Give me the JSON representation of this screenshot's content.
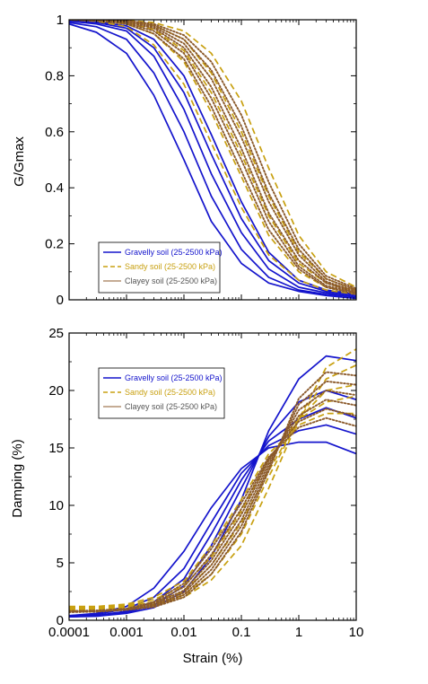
{
  "colors": {
    "gravelly": "#1414cc",
    "sandy": "#c8a010",
    "clayey": "#8b5a2b"
  },
  "chart_data": [
    {
      "type": "line",
      "xscale": "log",
      "xlim": [
        0.0001,
        10
      ],
      "ylim": [
        0,
        1
      ],
      "ylabel": "G/Gmax",
      "xlabel": "",
      "yticks": [
        "0",
        "0.2",
        "0.4",
        "0.6",
        "0.8",
        "1"
      ],
      "xticks": [],
      "legend": {
        "placement": "lower-left",
        "entries": [
          "Gravelly soil (25-2500 kPa)",
          "Sandy soil (25-2500 kPa)",
          "Clayey soil (25-2500 kPa)"
        ]
      },
      "series": [
        {
          "group": "gravelly",
          "x": [
            0.0001,
            0.0003,
            0.001,
            0.003,
            0.01,
            0.03,
            0.1,
            0.3,
            1,
            3,
            10
          ],
          "y": [
            0.985,
            0.955,
            0.88,
            0.73,
            0.5,
            0.28,
            0.13,
            0.06,
            0.03,
            0.015,
            0.005
          ]
        },
        {
          "group": "gravelly",
          "x": [
            0.0001,
            0.0003,
            0.001,
            0.003,
            0.01,
            0.03,
            0.1,
            0.3,
            1,
            3,
            10
          ],
          "y": [
            0.99,
            0.975,
            0.93,
            0.81,
            0.6,
            0.37,
            0.18,
            0.08,
            0.035,
            0.02,
            0.01
          ]
        },
        {
          "group": "gravelly",
          "x": [
            0.0001,
            0.0003,
            0.001,
            0.003,
            0.01,
            0.03,
            0.1,
            0.3,
            1,
            3,
            10
          ],
          "y": [
            0.995,
            0.985,
            0.96,
            0.87,
            0.68,
            0.45,
            0.24,
            0.11,
            0.045,
            0.025,
            0.01
          ]
        },
        {
          "group": "gravelly",
          "x": [
            0.0001,
            0.0003,
            0.001,
            0.003,
            0.01,
            0.03,
            0.1,
            0.3,
            1,
            3,
            10
          ],
          "y": [
            0.998,
            0.99,
            0.97,
            0.9,
            0.74,
            0.52,
            0.29,
            0.14,
            0.06,
            0.03,
            0.015
          ]
        },
        {
          "group": "gravelly",
          "x": [
            0.0001,
            0.0003,
            0.001,
            0.003,
            0.01,
            0.03,
            0.1,
            0.3,
            1,
            3,
            10
          ],
          "y": [
            0.998,
            0.993,
            0.978,
            0.93,
            0.8,
            0.59,
            0.35,
            0.17,
            0.07,
            0.035,
            0.02
          ]
        },
        {
          "group": "sandy",
          "x": [
            0.0001,
            0.0003,
            0.001,
            0.003,
            0.01,
            0.03,
            0.1,
            0.3,
            1,
            3,
            10
          ],
          "y": [
            1.0,
            0.995,
            0.975,
            0.91,
            0.77,
            0.56,
            0.33,
            0.16,
            0.07,
            0.035,
            0.02
          ]
        },
        {
          "group": "sandy",
          "x": [
            0.0001,
            0.0003,
            0.001,
            0.003,
            0.01,
            0.03,
            0.1,
            0.3,
            1,
            3,
            10
          ],
          "y": [
            1.0,
            0.997,
            0.985,
            0.95,
            0.85,
            0.67,
            0.44,
            0.23,
            0.1,
            0.045,
            0.025
          ]
        },
        {
          "group": "sandy",
          "x": [
            0.0001,
            0.0003,
            0.001,
            0.003,
            0.01,
            0.03,
            0.1,
            0.3,
            1,
            3,
            10
          ],
          "y": [
            1.0,
            0.998,
            0.99,
            0.965,
            0.89,
            0.74,
            0.52,
            0.3,
            0.13,
            0.06,
            0.03
          ]
        },
        {
          "group": "sandy",
          "x": [
            0.0001,
            0.0003,
            0.001,
            0.003,
            0.01,
            0.03,
            0.1,
            0.3,
            1,
            3,
            10
          ],
          "y": [
            1.0,
            0.999,
            0.995,
            0.98,
            0.93,
            0.81,
            0.6,
            0.37,
            0.17,
            0.075,
            0.035
          ]
        },
        {
          "group": "sandy",
          "x": [
            0.0001,
            0.0003,
            0.001,
            0.003,
            0.01,
            0.03,
            0.1,
            0.3,
            1,
            3,
            10
          ],
          "y": [
            1.0,
            1.0,
            0.998,
            0.99,
            0.96,
            0.88,
            0.71,
            0.47,
            0.23,
            0.1,
            0.045
          ]
        },
        {
          "group": "clayey",
          "x": [
            0.0001,
            0.0003,
            0.001,
            0.003,
            0.01,
            0.03,
            0.1,
            0.3,
            1,
            3,
            10
          ],
          "y": [
            1.0,
            0.996,
            0.985,
            0.95,
            0.86,
            0.69,
            0.46,
            0.25,
            0.11,
            0.045,
            0.02
          ]
        },
        {
          "group": "clayey",
          "x": [
            0.0001,
            0.0003,
            0.001,
            0.003,
            0.01,
            0.03,
            0.1,
            0.3,
            1,
            3,
            10
          ],
          "y": [
            1.0,
            0.997,
            0.988,
            0.96,
            0.88,
            0.72,
            0.5,
            0.28,
            0.12,
            0.05,
            0.025
          ]
        },
        {
          "group": "clayey",
          "x": [
            0.0001,
            0.0003,
            0.001,
            0.003,
            0.01,
            0.03,
            0.1,
            0.3,
            1,
            3,
            10
          ],
          "y": [
            1.0,
            0.998,
            0.992,
            0.97,
            0.9,
            0.76,
            0.54,
            0.31,
            0.14,
            0.06,
            0.025
          ]
        },
        {
          "group": "clayey",
          "x": [
            0.0001,
            0.0003,
            0.001,
            0.003,
            0.01,
            0.03,
            0.1,
            0.3,
            1,
            3,
            10
          ],
          "y": [
            1.0,
            0.999,
            0.994,
            0.975,
            0.915,
            0.79,
            0.58,
            0.35,
            0.16,
            0.065,
            0.03
          ]
        },
        {
          "group": "clayey",
          "x": [
            0.0001,
            0.0003,
            0.001,
            0.003,
            0.01,
            0.03,
            0.1,
            0.3,
            1,
            3,
            10
          ],
          "y": [
            1.0,
            0.999,
            0.996,
            0.98,
            0.93,
            0.82,
            0.62,
            0.38,
            0.18,
            0.075,
            0.035
          ]
        },
        {
          "group": "clayey",
          "x": [
            0.0001,
            0.0003,
            0.001,
            0.003,
            0.01,
            0.03,
            0.1,
            0.3,
            1,
            3,
            10
          ],
          "y": [
            1.0,
            1.0,
            0.997,
            0.985,
            0.945,
            0.85,
            0.66,
            0.42,
            0.2,
            0.085,
            0.04
          ]
        }
      ]
    },
    {
      "type": "line",
      "xscale": "log",
      "xlim": [
        0.0001,
        10
      ],
      "ylim": [
        0,
        25
      ],
      "ylabel": "Damping (%)",
      "xlabel": "Strain (%)",
      "yticks": [
        "0",
        "5",
        "10",
        "15",
        "20",
        "25"
      ],
      "xticks": [
        "0.0001",
        "0.001",
        "0.01",
        "0.1",
        "1",
        "10"
      ],
      "legend": {
        "placement": "top-left",
        "entries": [
          "Gravelly soil (25-2500 kPa)",
          "Sandy soil (25-2500 kPa)",
          "Clayey soil (25-2500 kPa)"
        ]
      },
      "series": [
        {
          "group": "gravelly",
          "x": [
            0.0001,
            0.0003,
            0.001,
            0.003,
            0.01,
            0.03,
            0.1,
            0.3,
            1,
            3,
            10
          ],
          "y": [
            0.4,
            0.6,
            1.2,
            2.8,
            6,
            9.8,
            13.2,
            15,
            15.5,
            15.5,
            14.5
          ]
        },
        {
          "group": "gravelly",
          "x": [
            0.0001,
            0.0003,
            0.001,
            0.003,
            0.01,
            0.03,
            0.1,
            0.3,
            1,
            3,
            10
          ],
          "y": [
            0.4,
            0.5,
            1,
            2,
            4.5,
            8.5,
            12.8,
            15.2,
            16.5,
            17,
            16.2
          ]
        },
        {
          "group": "gravelly",
          "x": [
            0.0001,
            0.0003,
            0.001,
            0.003,
            0.01,
            0.03,
            0.1,
            0.3,
            1,
            3,
            10
          ],
          "y": [
            0.3,
            0.4,
            0.8,
            1.6,
            3.6,
            7.5,
            12.2,
            15.6,
            17.5,
            18.5,
            17.6
          ]
        },
        {
          "group": "gravelly",
          "x": [
            0.0001,
            0.0003,
            0.001,
            0.003,
            0.01,
            0.03,
            0.1,
            0.3,
            1,
            3,
            10
          ],
          "y": [
            0.3,
            0.4,
            0.7,
            1.3,
            3,
            6.5,
            11.5,
            16,
            19,
            20,
            19.2
          ]
        },
        {
          "group": "gravelly",
          "x": [
            0.0001,
            0.0003,
            0.001,
            0.003,
            0.01,
            0.03,
            0.1,
            0.3,
            1,
            3,
            10
          ],
          "y": [
            0.3,
            0.35,
            0.6,
            1.1,
            2.5,
            5.5,
            10.5,
            16.5,
            21,
            23,
            22.6
          ]
        },
        {
          "group": "sandy",
          "x": [
            0.0001,
            0.0003,
            0.001,
            0.003,
            0.01,
            0.03,
            0.1,
            0.3,
            1,
            3,
            10
          ],
          "y": [
            1.2,
            1.2,
            1.4,
            2,
            3.4,
            6.5,
            10.5,
            14.5,
            17,
            18,
            18
          ]
        },
        {
          "group": "sandy",
          "x": [
            0.0001,
            0.0003,
            0.001,
            0.003,
            0.01,
            0.03,
            0.1,
            0.3,
            1,
            3,
            10
          ],
          "y": [
            1.1,
            1.1,
            1.3,
            1.8,
            3,
            5.5,
            9.5,
            14,
            17.5,
            19,
            19.5
          ]
        },
        {
          "group": "sandy",
          "x": [
            0.0001,
            0.0003,
            0.001,
            0.003,
            0.01,
            0.03,
            0.1,
            0.3,
            1,
            3,
            10
          ],
          "y": [
            1.0,
            1.0,
            1.2,
            1.6,
            2.5,
            4.8,
            8.5,
            13,
            17.5,
            20,
            20.5
          ]
        },
        {
          "group": "sandy",
          "x": [
            0.0001,
            0.0003,
            0.001,
            0.003,
            0.01,
            0.03,
            0.1,
            0.3,
            1,
            3,
            10
          ],
          "y": [
            0.9,
            0.9,
            1.1,
            1.4,
            2.2,
            4,
            7.5,
            12.5,
            17.5,
            21,
            22.2
          ]
        },
        {
          "group": "sandy",
          "x": [
            0.0001,
            0.0003,
            0.001,
            0.003,
            0.01,
            0.03,
            0.1,
            0.3,
            1,
            3,
            10
          ],
          "y": [
            0.8,
            0.8,
            1.0,
            1.3,
            2,
            3.5,
            6.5,
            11.5,
            17.5,
            22,
            23.6
          ]
        },
        {
          "group": "clayey",
          "x": [
            0.0001,
            0.0003,
            0.001,
            0.003,
            0.01,
            0.03,
            0.1,
            0.3,
            1,
            3,
            10
          ],
          "y": [
            0.8,
            0.85,
            1.0,
            1.6,
            3.2,
            6.2,
            10.2,
            14.2,
            16.8,
            17.6,
            16.9
          ]
        },
        {
          "group": "clayey",
          "x": [
            0.0001,
            0.0003,
            0.001,
            0.003,
            0.01,
            0.03,
            0.1,
            0.3,
            1,
            3,
            10
          ],
          "y": [
            0.8,
            0.85,
            1.0,
            1.5,
            2.9,
            5.7,
            9.7,
            14.1,
            17.3,
            18.4,
            17.8
          ]
        },
        {
          "group": "clayey",
          "x": [
            0.0001,
            0.0003,
            0.001,
            0.003,
            0.01,
            0.03,
            0.1,
            0.3,
            1,
            3,
            10
          ],
          "y": [
            0.8,
            0.8,
            1.0,
            1.4,
            2.6,
            5.2,
            9.2,
            13.9,
            17.8,
            19.2,
            18.7
          ]
        },
        {
          "group": "clayey",
          "x": [
            0.0001,
            0.0003,
            0.001,
            0.003,
            0.01,
            0.03,
            0.1,
            0.3,
            1,
            3,
            10
          ],
          "y": [
            0.75,
            0.8,
            0.95,
            1.3,
            2.4,
            4.8,
            8.7,
            13.6,
            18.3,
            20,
            19.6
          ]
        },
        {
          "group": "clayey",
          "x": [
            0.0001,
            0.0003,
            0.001,
            0.003,
            0.01,
            0.03,
            0.1,
            0.3,
            1,
            3,
            10
          ],
          "y": [
            0.75,
            0.75,
            0.9,
            1.2,
            2.2,
            4.4,
            8.2,
            13.3,
            18.8,
            20.8,
            20.5
          ]
        },
        {
          "group": "clayey",
          "x": [
            0.0001,
            0.0003,
            0.001,
            0.003,
            0.01,
            0.03,
            0.1,
            0.3,
            1,
            3,
            10
          ],
          "y": [
            0.7,
            0.75,
            0.9,
            1.15,
            2,
            4,
            7.7,
            13,
            19.3,
            21.6,
            21.3
          ]
        }
      ]
    }
  ]
}
